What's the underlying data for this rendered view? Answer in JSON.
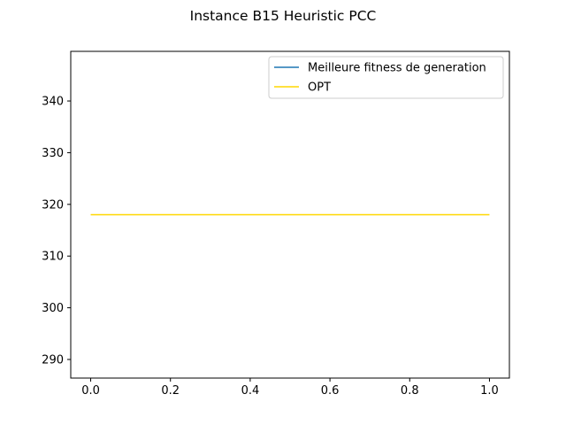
{
  "chart_data": {
    "type": "line",
    "title": "Instance B15 Heuristic PCC",
    "xlabel": "",
    "ylabel": "",
    "xlim": [
      -0.05,
      1.05
    ],
    "ylim": [
      286.4,
      349.6
    ],
    "x_ticks": [
      0.0,
      0.2,
      0.4,
      0.6,
      0.8,
      1.0
    ],
    "x_tick_labels": [
      "0.0",
      "0.2",
      "0.4",
      "0.6",
      "0.8",
      "1.0"
    ],
    "y_ticks": [
      290,
      300,
      310,
      320,
      330,
      340
    ],
    "y_tick_labels": [
      "290",
      "300",
      "310",
      "320",
      "330",
      "340"
    ],
    "grid": false,
    "legend_position": "top-right",
    "series": [
      {
        "name": "Meilleure fitness de generation",
        "color": "#1f77b4",
        "x": [],
        "y": []
      },
      {
        "name": "OPT",
        "color": "#ffd700",
        "x": [
          0.0,
          1.0
        ],
        "y": [
          318,
          318
        ]
      }
    ]
  }
}
